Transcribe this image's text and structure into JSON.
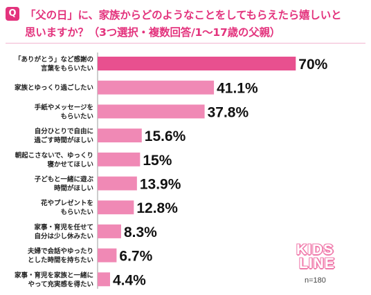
{
  "header": {
    "q_badge": "Q",
    "title_line1": "「父の日」に、家族からどのようなことをしてもらえたら嬉しいと",
    "title_line2": "思いますか？（3つ選択・複数回答/1～17歳の父親）"
  },
  "colors": {
    "accent": "#e3337d",
    "top_bar": "#e8508f",
    "bar": "#f089b5"
  },
  "chart_data": {
    "type": "bar",
    "orientation": "horizontal",
    "title": "「父の日」に、家族からどのようなことをしてもらえたら嬉しいと思いますか？（3つ選択・複数回答/1～17歳の父親）",
    "unit": "%",
    "xlim": [
      0,
      100
    ],
    "grid": false,
    "categories": [
      [
        "「ありがとう」など感謝の",
        "言葉をもらいたい"
      ],
      [
        "家族とゆっくり過ごしたい"
      ],
      [
        "手紙やメッセージを",
        "もらいたい"
      ],
      [
        "自分ひとりで自由に",
        "過ごす時間がほしい"
      ],
      [
        "朝起こさないで、ゆっくり",
        "寝かせてほしい"
      ],
      [
        "子どもと一緒に遊ぶ",
        "時間がほしい"
      ],
      [
        "花やプレゼントを",
        "もらいたい"
      ],
      [
        "家事・育児を任せて",
        "自分は少し休みたい"
      ],
      [
        "夫婦で会話やゆったり",
        "とした時間を持ちたい"
      ],
      [
        "家事・育児を家族と一緒に",
        "やって充実感を得たい"
      ]
    ],
    "values": [
      70,
      41.1,
      37.8,
      15.6,
      15,
      13.9,
      12.8,
      8.3,
      6.7,
      4.4
    ],
    "value_labels": [
      "70%",
      "41.1%",
      "37.8%",
      "15.6%",
      "15%",
      "13.9%",
      "12.8%",
      "8.3%",
      "6.7%",
      "4.4%"
    ],
    "sample_size": "n=180"
  },
  "logo": {
    "line1": "KIDS",
    "line2": "LINE"
  }
}
